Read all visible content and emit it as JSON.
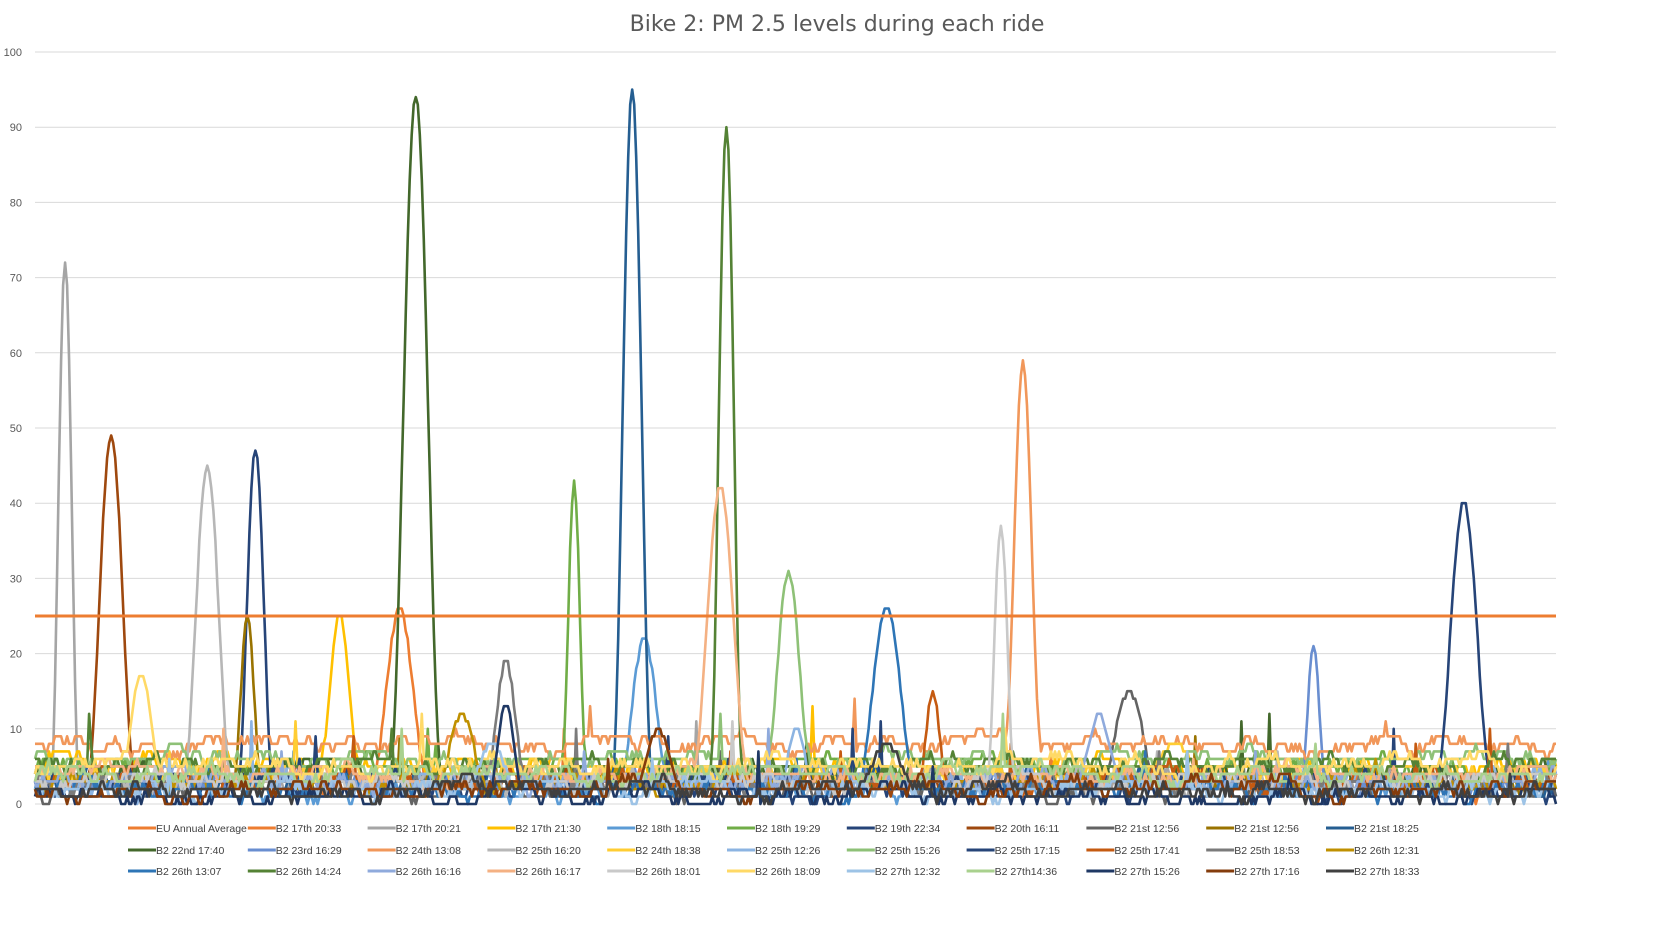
{
  "chart_data": {
    "type": "line",
    "title": "Bike 2: PM 2.5 levels during each ride",
    "xlabel": "",
    "ylabel": "",
    "ylim": [
      0,
      100
    ],
    "yticks": [
      0,
      10,
      20,
      30,
      40,
      50,
      60,
      70,
      80,
      90,
      100
    ],
    "grid": true,
    "legend_position": "bottom",
    "reference_line": {
      "name": "EU Annual Average",
      "value": 25,
      "color": "#ED7D31"
    },
    "series": [
      {
        "name": "B2 17th 20:33",
        "color": "#ED7D31",
        "peak": {
          "x": 0.24,
          "y": 26
        },
        "baseline": 3
      },
      {
        "name": "B2 17th 20:21",
        "color": "#A5A5A5",
        "peak": {
          "x": 0.02,
          "y": 72
        },
        "baseline": 3
      },
      {
        "name": "B2 17th 21:30",
        "color": "#FFC000",
        "peak": {
          "x": 0.2,
          "y": 25
        },
        "baseline": 5
      },
      {
        "name": "B2 18th 18:15",
        "color": "#5B9BD5",
        "peak": {
          "x": 0.4,
          "y": 22
        },
        "baseline": 2
      },
      {
        "name": "B2 18th 19:29",
        "color": "#70AD47",
        "peak": {
          "x": 0.355,
          "y": 43
        },
        "baseline": 5
      },
      {
        "name": "B2 19th 22:34",
        "color": "#264478",
        "peak": {
          "x": 0.145,
          "y": 47
        },
        "baseline": 2
      },
      {
        "name": "B2 20th 16:11",
        "color": "#9E480E",
        "peak": {
          "x": 0.05,
          "y": 49
        },
        "baseline": 3
      },
      {
        "name": "B2 21st 12:56",
        "color": "#636363",
        "peak": {
          "x": 0.72,
          "y": 15
        },
        "baseline": 2
      },
      {
        "name": "B2 21st 12:56",
        "color": "#997300",
        "peak": {
          "x": 0.14,
          "y": 25
        },
        "baseline": 3
      },
      {
        "name": "B2 21st 18:25",
        "color": "#255E91",
        "peak": {
          "x": 0.393,
          "y": 95
        },
        "baseline": 3
      },
      {
        "name": "B2 22nd 17:40",
        "color": "#43682B",
        "peak": {
          "x": 0.25,
          "y": 94
        },
        "baseline": 4
      },
      {
        "name": "B2 23rd 16:29",
        "color": "#698ED0",
        "peak": {
          "x": 0.84,
          "y": 21
        },
        "baseline": 3
      },
      {
        "name": "B2 24th 13:08",
        "color": "#F1975A",
        "peak": {
          "x": 0.65,
          "y": 59
        },
        "baseline": 8
      },
      {
        "name": "B2 25th 16:20",
        "color": "#B7B7B7",
        "peak": {
          "x": 0.113,
          "y": 45
        },
        "baseline": 3
      },
      {
        "name": "B2 24th 18:38",
        "color": "#FFCD33",
        "peak": {
          "x": 0.75,
          "y": 8
        },
        "baseline": 4
      },
      {
        "name": "B2 25th 12:26",
        "color": "#8CB4E2",
        "peak": {
          "x": 0.5,
          "y": 10
        },
        "baseline": 3
      },
      {
        "name": "B2 25th 15:26",
        "color": "#8EC177",
        "peak": {
          "x": 0.495,
          "y": 31
        },
        "baseline": 6
      },
      {
        "name": "B2 25th 17:15",
        "color": "#264478",
        "peak": {
          "x": 0.94,
          "y": 40
        },
        "baseline": 3
      },
      {
        "name": "B2 25th 17:41",
        "color": "#C55A11",
        "peak": {
          "x": 0.59,
          "y": 15
        },
        "baseline": 3
      },
      {
        "name": "B2 25th 18:53",
        "color": "#7B7B7B",
        "peak": {
          "x": 0.31,
          "y": 19
        },
        "baseline": 3
      },
      {
        "name": "B2 26th 12:31",
        "color": "#BF9000",
        "peak": {
          "x": 0.28,
          "y": 12
        },
        "baseline": 3
      },
      {
        "name": "B2 26th 13:07",
        "color": "#2E75B6",
        "peak": {
          "x": 0.56,
          "y": 26
        },
        "baseline": 2
      },
      {
        "name": "B2 26th 14:24",
        "color": "#548235",
        "peak": {
          "x": 0.455,
          "y": 90
        },
        "baseline": 5
      },
      {
        "name": "B2 26th 16:16",
        "color": "#8FAADC",
        "peak": {
          "x": 0.7,
          "y": 12
        },
        "baseline": 3
      },
      {
        "name": "B2 26th 16:17",
        "color": "#F4B183",
        "peak": {
          "x": 0.45,
          "y": 42
        },
        "baseline": 4
      },
      {
        "name": "B2 26th 18:01",
        "color": "#C9C9C9",
        "peak": {
          "x": 0.635,
          "y": 37
        },
        "baseline": 3
      },
      {
        "name": "B2 26th 18:09",
        "color": "#FFD966",
        "peak": {
          "x": 0.07,
          "y": 17
        },
        "baseline": 5
      },
      {
        "name": "B2 27th 12:32",
        "color": "#9DC3E6",
        "peak": {
          "x": 0.3,
          "y": 8
        },
        "baseline": 2
      },
      {
        "name": "B2 27th14:36",
        "color": "#A9D18E",
        "peak": {
          "x": 0.6,
          "y": 6
        },
        "baseline": 4
      },
      {
        "name": "B2 27th 15:26",
        "color": "#1F3864",
        "peak": {
          "x": 0.31,
          "y": 13
        },
        "baseline": 1
      },
      {
        "name": "B2 27th 17:16",
        "color": "#843C0C",
        "peak": {
          "x": 0.41,
          "y": 10
        },
        "baseline": 2
      },
      {
        "name": "B2 27th 18:33",
        "color": "#404040",
        "peak": {
          "x": 0.56,
          "y": 8
        },
        "baseline": 2
      }
    ]
  }
}
